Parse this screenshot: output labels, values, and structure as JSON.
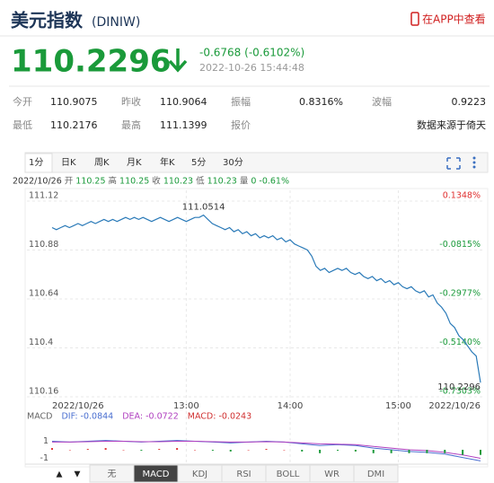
{
  "header": {
    "title": "美元指数",
    "code": "(DINIW)",
    "app_link": "在APP中查看"
  },
  "quote": {
    "price": "110.2296",
    "change": "-0.6768 (-0.6102%)",
    "time": "2022-10-26 15:44:48"
  },
  "stats": {
    "rows": [
      [
        "今开",
        "110.9075",
        "昨收",
        "110.9064",
        "振幅",
        "0.8316%",
        "波幅",
        "0.9223"
      ],
      [
        "最低",
        "110.2176",
        "最高",
        "111.1399",
        "报价",
        "数据来源于倚天"
      ]
    ]
  },
  "tabs": [
    "1分",
    "日K",
    "周K",
    "月K",
    "年K",
    "5分",
    "30分"
  ],
  "selected_tab": 0,
  "info": [
    "2022/10/26",
    "开",
    "110.25",
    "高",
    "110.25",
    "收",
    "110.23",
    "低",
    "110.23",
    "量",
    "0",
    "-0.61%"
  ],
  "chart_data": [
    {
      "type": "line",
      "color": "#2a7ab8",
      "up_color": "#e03030",
      "down_color": "#1a9a3a",
      "grid": true,
      "categories": [
        "2022/10/26",
        null,
        null,
        null,
        null,
        null,
        null,
        null,
        null,
        null,
        null,
        null,
        null,
        null,
        null,
        null,
        null,
        null,
        null,
        null,
        null,
        null,
        null,
        null,
        null,
        null,
        null,
        null,
        null,
        null,
        null,
        "13:00",
        null,
        null,
        null,
        null,
        null,
        null,
        null,
        null,
        null,
        null,
        null,
        null,
        null,
        null,
        null,
        null,
        null,
        null,
        null,
        null,
        null,
        null,
        null,
        "14:00",
        null,
        null,
        null,
        null,
        null,
        null,
        null,
        null,
        null,
        null,
        null,
        null,
        null,
        null,
        null,
        null,
        null,
        null,
        null,
        null,
        null,
        null,
        null,
        null,
        "15:00",
        null,
        null,
        null,
        null,
        null,
        null,
        null,
        null,
        null,
        null,
        null,
        null,
        null,
        null,
        null,
        null,
        null,
        null,
        "2022/10/26"
      ],
      "values": [
        110.99,
        110.98,
        110.99,
        111.0,
        110.99,
        111.0,
        111.01,
        111.0,
        111.01,
        111.02,
        111.01,
        111.02,
        111.03,
        111.02,
        111.03,
        111.02,
        111.03,
        111.04,
        111.03,
        111.04,
        111.03,
        111.04,
        111.03,
        111.02,
        111.03,
        111.04,
        111.03,
        111.02,
        111.03,
        111.04,
        111.03,
        111.02,
        111.03,
        111.04,
        111.04,
        111.0514,
        111.03,
        111.01,
        111.0,
        110.99,
        110.98,
        110.99,
        110.97,
        110.98,
        110.96,
        110.97,
        110.95,
        110.96,
        110.94,
        110.95,
        110.94,
        110.95,
        110.93,
        110.94,
        110.92,
        110.93,
        110.91,
        110.9,
        110.89,
        110.88,
        110.85,
        110.8,
        110.78,
        110.79,
        110.77,
        110.78,
        110.79,
        110.78,
        110.79,
        110.77,
        110.76,
        110.77,
        110.75,
        110.74,
        110.75,
        110.73,
        110.74,
        110.72,
        110.73,
        110.71,
        110.72,
        110.7,
        110.69,
        110.7,
        110.68,
        110.67,
        110.68,
        110.65,
        110.66,
        110.62,
        110.6,
        110.57,
        110.52,
        110.5,
        110.46,
        110.44,
        110.41,
        110.38,
        110.36,
        110.2296
      ],
      "ylim": [
        110.16,
        111.12
      ],
      "yticks": [
        111.12,
        110.88,
        110.64,
        110.4,
        110.16
      ],
      "y2lim": [
        -0.7303,
        0.1348
      ],
      "y2ticks": [
        {
          "value": 0.1348,
          "label": "0.1348%"
        },
        {
          "value": -0.0815,
          "label": "-0.0815%"
        },
        {
          "value": -0.2977,
          "label": "-0.2977%"
        },
        {
          "value": -0.514,
          "label": "-0.5140%"
        },
        {
          "value": -0.7303,
          "label": "-0.7303%"
        }
      ],
      "annotations": [
        "111.0514",
        "110.2296"
      ]
    },
    {
      "type": "line",
      "legend": [
        "MACD",
        "DIF: -0.0844",
        "DEA: -0.0722",
        "MACD: -0.0243"
      ],
      "legend_colors": [
        "#666666",
        "#4a6fd0",
        "#b040c0",
        "#d03030"
      ],
      "ylim": [
        -2,
        2
      ],
      "yticks": [
        1,
        -1
      ],
      "series": [
        {
          "color": "#4a6fd0",
          "values": [
            1,
            0.9,
            1,
            1.1,
            1,
            0.9,
            1,
            1.1,
            1,
            0.9,
            0.8,
            0.9,
            1,
            0.9,
            0.7,
            0.5,
            0.6,
            0.5,
            0.2,
            0,
            -0.2,
            -0.3,
            -0.5,
            -0.9,
            -1.3
          ]
        },
        {
          "color": "#b040c0",
          "values": [
            0.9,
            0.9,
            0.95,
            1,
            1,
            0.95,
            0.95,
            1,
            1,
            0.95,
            0.9,
            0.9,
            0.95,
            0.9,
            0.8,
            0.7,
            0.65,
            0.6,
            0.4,
            0.2,
            0,
            -0.1,
            -0.3,
            -0.6,
            -1
          ]
        },
        {
          "type": "bar",
          "values": [
            0.2,
            0,
            0.1,
            0.2,
            0,
            -0.1,
            0.1,
            0.2,
            0,
            -0.1,
            -0.2,
            0,
            0.1,
            0,
            -0.2,
            -0.4,
            -0.1,
            -0.2,
            -0.4,
            -0.4,
            -0.4,
            -0.4,
            -0.4,
            -0.6,
            -0.6
          ]
        }
      ],
      "up_color": "#e03030",
      "down_color": "#1a9a3a"
    }
  ],
  "indicator_nav": [
    "▲",
    "▼"
  ],
  "indicators": [
    "无",
    "MACD",
    "KDJ",
    "RSI",
    "BOLL",
    "WR",
    "DMI"
  ],
  "selected_indicator": 1
}
